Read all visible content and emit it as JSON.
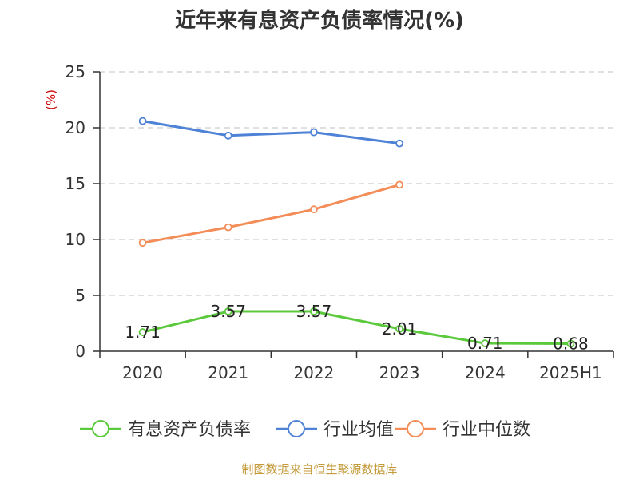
{
  "chart_data": {
    "type": "line",
    "title": "近年来有息资产负债率情况(%)",
    "ylabel": "(%)",
    "xlabel": "",
    "categories": [
      "2020",
      "2021",
      "2022",
      "2023",
      "2024",
      "2025H1"
    ],
    "ylim": [
      0,
      25
    ],
    "yticks": [
      0,
      5,
      10,
      15,
      20,
      25
    ],
    "grid": true,
    "legend_position": "bottom",
    "series": [
      {
        "name": "有息资产负债率",
        "color": "#5ac93b",
        "values": [
          1.71,
          3.57,
          3.57,
          2.01,
          0.71,
          0.68
        ],
        "data_labels": [
          "1.71",
          "3.57",
          "3.57",
          "2.01",
          "0.71",
          "0.68"
        ]
      },
      {
        "name": "行业均值",
        "color": "#4e82d6",
        "values": [
          20.6,
          19.3,
          19.6,
          18.6,
          null,
          null
        ]
      },
      {
        "name": "行业中位数",
        "color": "#f38c57",
        "values": [
          9.7,
          11.1,
          12.7,
          14.9,
          null,
          null
        ]
      }
    ]
  },
  "source_text": "制图数据来自恒生聚源数据库",
  "colors": {
    "unit_label": "#cc0000",
    "source": "#c49a3a",
    "axis": "#333333",
    "grid": "#cccccc"
  }
}
